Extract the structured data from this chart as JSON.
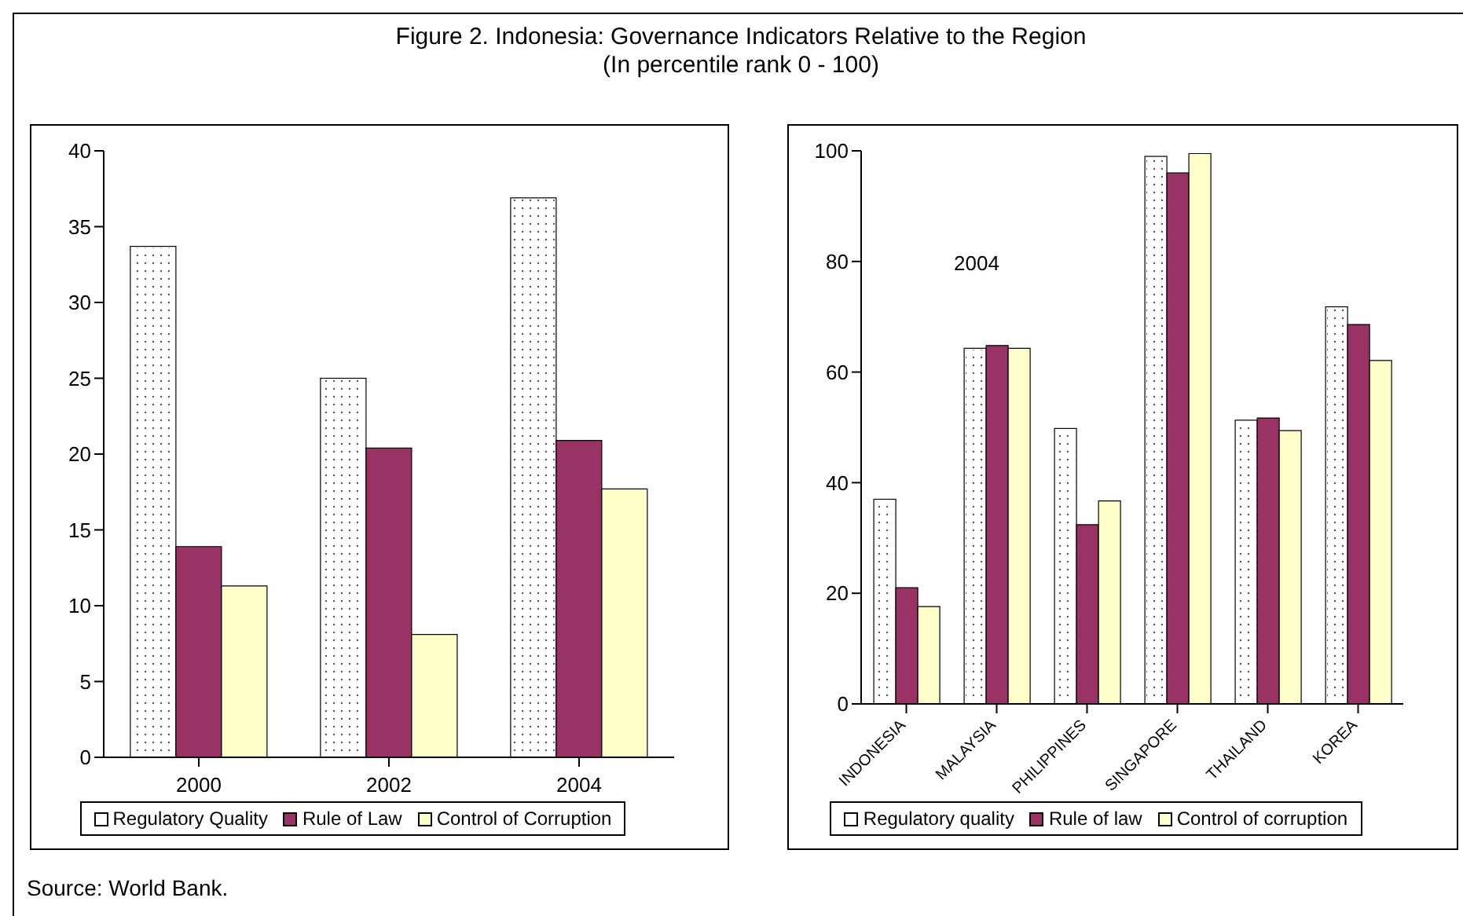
{
  "chart_data": [
    {
      "type": "bar",
      "title": "Figure 2. Indonesia: Governance Indicators Relative to the Region",
      "subtitle": "(In percentile rank 0 - 100)",
      "categories": [
        "2000",
        "2002",
        "2004"
      ],
      "series": [
        {
          "name": "Regulatory Quality",
          "color": "#ffffff",
          "values": [
            33.7,
            25.0,
            36.9
          ]
        },
        {
          "name": "Rule of Law",
          "color": "#993366",
          "values": [
            13.9,
            20.4,
            20.9
          ]
        },
        {
          "name": "Control of Corruption",
          "color": "#ffffcc",
          "values": [
            11.3,
            8.1,
            17.7
          ]
        }
      ],
      "ylim": [
        0,
        40
      ],
      "yticks": [
        0,
        5,
        10,
        15,
        20,
        25,
        30,
        35,
        40
      ],
      "grid": false,
      "legend": "bottom",
      "annotations": [
        "Source: World Bank."
      ]
    },
    {
      "type": "bar",
      "categories": [
        "INDONESIA",
        "MALAYSIA",
        "PHILIPPINES",
        "SINGAPORE",
        "THAILAND",
        "KOREA"
      ],
      "series": [
        {
          "name": "Regulatory quality",
          "color": "#ffffff",
          "values": [
            37.0,
            64.3,
            49.8,
            99.0,
            51.3,
            71.8
          ]
        },
        {
          "name": "Rule of law",
          "color": "#993366",
          "values": [
            21.0,
            64.8,
            32.4,
            96.0,
            51.7,
            68.6
          ]
        },
        {
          "name": "Control of corruption",
          "color": "#ffffcc",
          "values": [
            17.6,
            64.3,
            36.7,
            99.5,
            49.4,
            62.1
          ]
        }
      ],
      "ylim": [
        0,
        100
      ],
      "yticks": [
        0,
        20,
        40,
        60,
        80,
        100
      ],
      "grid": false,
      "legend": "bottom",
      "annotations": [
        "2004"
      ]
    }
  ]
}
